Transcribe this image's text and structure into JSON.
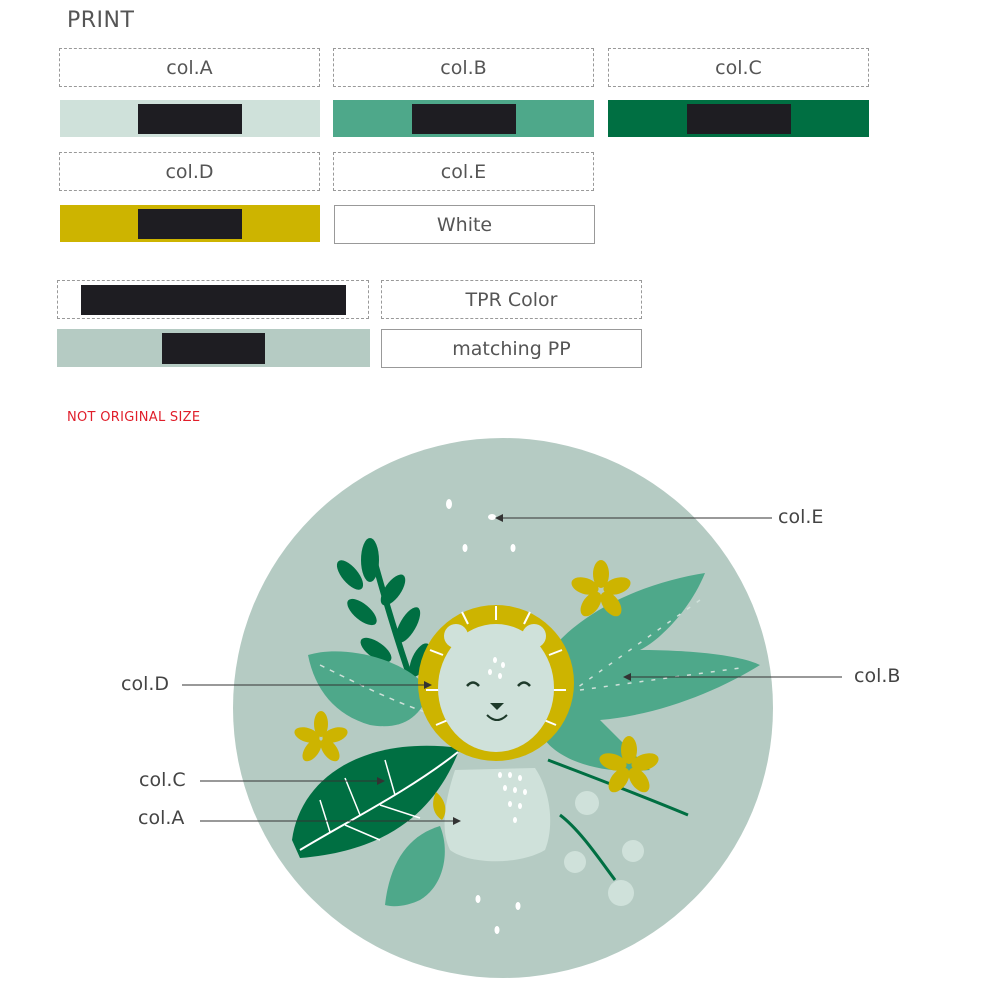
{
  "header": {
    "title": "PRINT"
  },
  "colors": {
    "col_a": "#cfe1da",
    "col_b": "#4ea88a",
    "col_c": "#006f42",
    "col_d": "#cdb400",
    "col_e": "#ffffff",
    "tpr": "#b5cbc3",
    "redaction": "#1e1d22"
  },
  "palette": [
    {
      "label": "col.A",
      "swatch_color": "#cfe1da"
    },
    {
      "label": "col.B",
      "swatch_color": "#4ea88a"
    },
    {
      "label": "col.C",
      "swatch_color": "#006f42"
    },
    {
      "label": "col.D",
      "swatch_color": "#cdb400"
    },
    {
      "label": "col.E",
      "swatch_text": "White"
    }
  ],
  "tpr": {
    "label": "TPR Color",
    "matching_label": "matching PP"
  },
  "notice": "NOT ORIGINAL SIZE",
  "callouts": {
    "col_e": "col.E",
    "col_b": "col.B",
    "col_d": "col.D",
    "col_c": "col.C",
    "col_a": "col.A"
  },
  "icons": {
    "lion": "lion-face-icon",
    "leaf": "leaf-icon",
    "flower": "flower-icon"
  }
}
